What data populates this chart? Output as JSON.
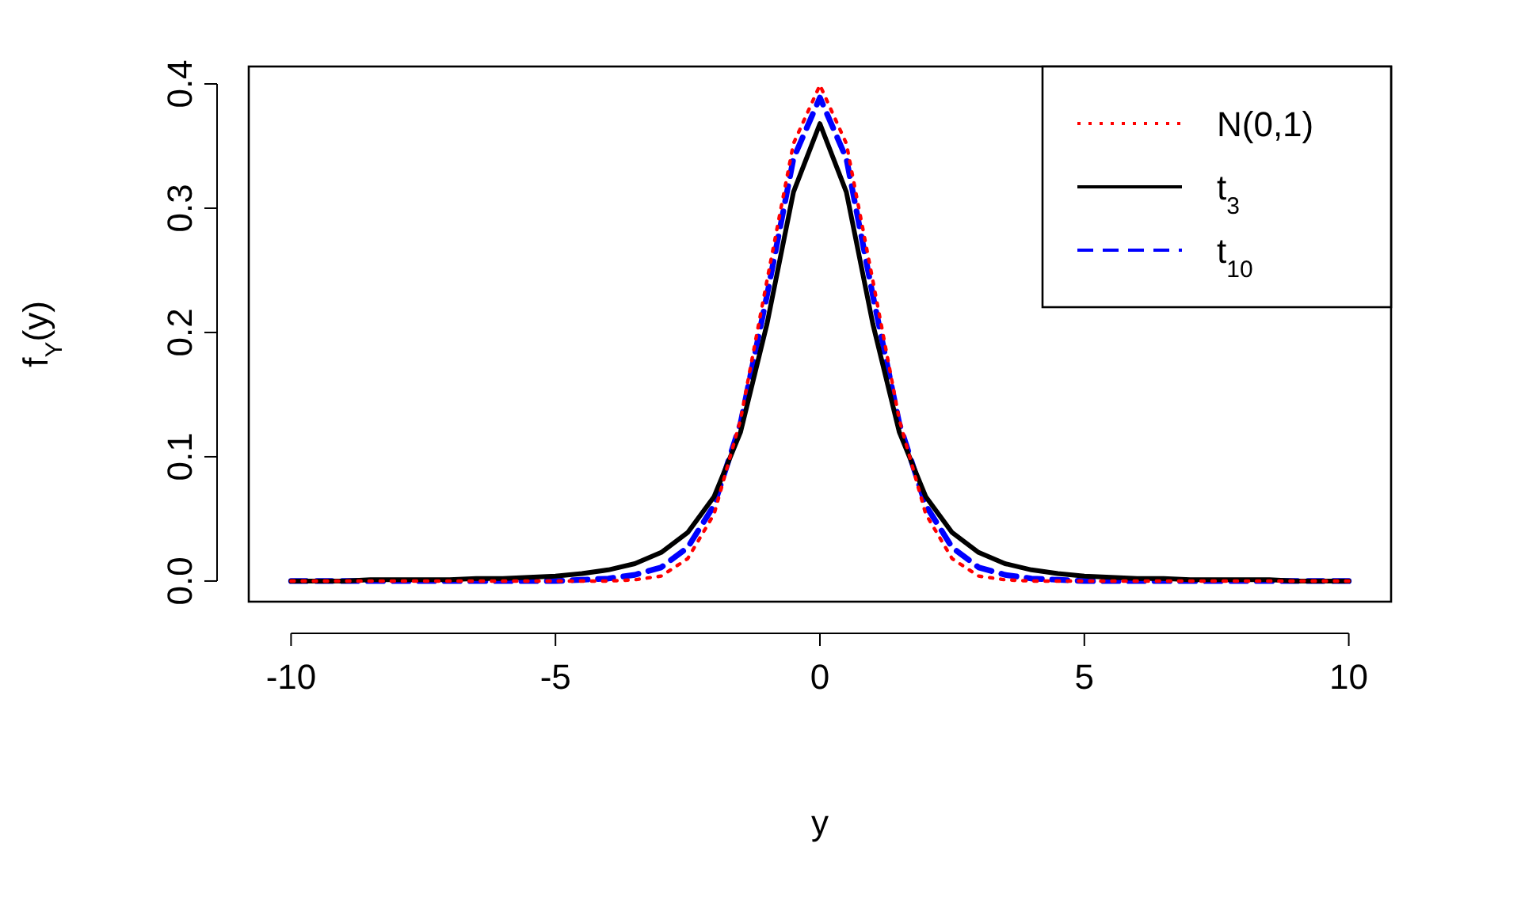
{
  "chart_data": {
    "type": "line",
    "xlabel": "y",
    "ylabel": "f$_{Y}$(y)",
    "x": [
      -10,
      -9.5,
      -9,
      -8.5,
      -8,
      -7.5,
      -7,
      -6.5,
      -6,
      -5.5,
      -5,
      -4.5,
      -4,
      -3.5,
      -3,
      -2.5,
      -2,
      -1.5,
      -1,
      -0.5,
      0,
      0.5,
      1,
      1.5,
      2,
      2.5,
      3,
      3.5,
      4,
      4.5,
      5,
      5.5,
      6,
      6.5,
      7,
      7.5,
      8,
      8.5,
      9,
      9.5,
      10
    ],
    "series": [
      {
        "name": "N(0,1)",
        "color": "#ff0000",
        "line_style": "dotted",
        "values": [
          0,
          0,
          0,
          0,
          0,
          0,
          0,
          0,
          0,
          0,
          0,
          0,
          0,
          0.001,
          0.004,
          0.018,
          0.054,
          0.13,
          0.242,
          0.352,
          0.399,
          0.352,
          0.242,
          0.13,
          0.054,
          0.018,
          0.004,
          0.001,
          0,
          0,
          0,
          0,
          0,
          0,
          0,
          0,
          0,
          0,
          0,
          0,
          0
        ]
      },
      {
        "name": "t$_{3}$",
        "color": "#000000",
        "line_style": "solid",
        "values": [
          0,
          0,
          0,
          0.001,
          0.001,
          0.001,
          0.001,
          0.002,
          0.002,
          0.003,
          0.004,
          0.006,
          0.009,
          0.014,
          0.023,
          0.039,
          0.068,
          0.12,
          0.207,
          0.313,
          0.368,
          0.313,
          0.207,
          0.12,
          0.068,
          0.039,
          0.023,
          0.014,
          0.009,
          0.006,
          0.004,
          0.003,
          0.002,
          0.002,
          0.001,
          0.001,
          0.001,
          0.001,
          0,
          0,
          0
        ]
      },
      {
        "name": "t$_{10}$",
        "color": "#0000ff",
        "line_style": "dashed",
        "values": [
          0,
          0,
          0,
          0,
          0,
          0,
          0,
          0,
          0,
          0,
          0,
          0.001,
          0.002,
          0.005,
          0.011,
          0.027,
          0.061,
          0.127,
          0.23,
          0.34,
          0.389,
          0.34,
          0.23,
          0.127,
          0.061,
          0.027,
          0.011,
          0.005,
          0.002,
          0.001,
          0,
          0,
          0,
          0,
          0,
          0,
          0,
          0,
          0,
          0,
          0
        ]
      }
    ],
    "xlim": [
      -10.8,
      10.8
    ],
    "ylim": [
      -0.0166,
      0.414
    ],
    "xticks": [
      -10,
      -5,
      0,
      5,
      10
    ],
    "yticks": [
      {
        "value": 0,
        "label": "0.0"
      },
      0.1,
      0.2,
      0.3,
      0.4
    ],
    "grid": false,
    "legend": "top right"
  }
}
